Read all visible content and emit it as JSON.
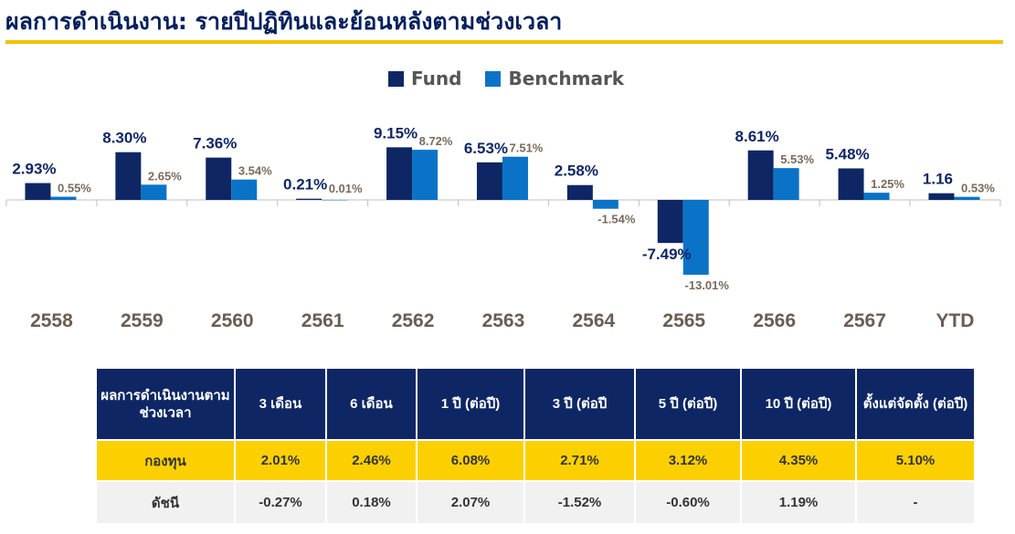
{
  "page": {
    "title": "ผลการดำเนินงาน: รายปีปฏิทินและย้อนหลังตามช่วงเวลา"
  },
  "colors": {
    "fund": "#0e2764",
    "benchmark": "#0a73c7",
    "accent": "#f2c200"
  },
  "chart_data": {
    "type": "bar",
    "categories": [
      "2558",
      "2559",
      "2560",
      "2561",
      "2562",
      "2563",
      "2564",
      "2565",
      "2566",
      "2567",
      "YTD"
    ],
    "series": [
      {
        "name": "Fund",
        "values": [
          2.93,
          8.3,
          7.36,
          0.21,
          9.15,
          6.53,
          2.58,
          -7.49,
          8.61,
          5.48,
          1.16
        ],
        "labels": [
          "2.93%",
          "8.30%",
          "7.36%",
          "0.21%",
          "9.15%",
          "6.53%",
          "2.58%",
          "-7.49%",
          "8.61%",
          "5.48%",
          "1.16"
        ]
      },
      {
        "name": "Benchmark",
        "values": [
          0.55,
          2.65,
          3.54,
          0.01,
          8.72,
          7.51,
          -1.54,
          -13.01,
          5.53,
          1.25,
          0.53
        ],
        "labels": [
          "0.55%",
          "2.65%",
          "3.54%",
          "0.01%",
          "8.72%",
          "7.51%",
          "-1.54%",
          "-13.01%",
          "5.53%",
          "1.25%",
          "0.53%"
        ]
      }
    ],
    "legend_position": "top-center"
  },
  "table": {
    "headers": [
      "ผลการดำเนินงานตามช่วงเวลา",
      "3 เดือน",
      "6 เดือน",
      "1 ปี (ต่อปี)",
      "3 ปี (ต่อปี",
      "5 ปี (ต่อปี)",
      "10 ปี (ต่อปี)",
      "ตั้งแต่จัดตั้ง (ต่อปี)"
    ],
    "rows": [
      {
        "label": "กองทุน",
        "values": [
          "2.01%",
          "2.46%",
          "6.08%",
          "2.71%",
          "3.12%",
          "4.35%",
          "5.10%"
        ]
      },
      {
        "label": "ดัชนี",
        "values": [
          "-0.27%",
          "0.18%",
          "2.07%",
          "-1.52%",
          "-0.60%",
          "1.19%",
          "-"
        ]
      }
    ]
  }
}
